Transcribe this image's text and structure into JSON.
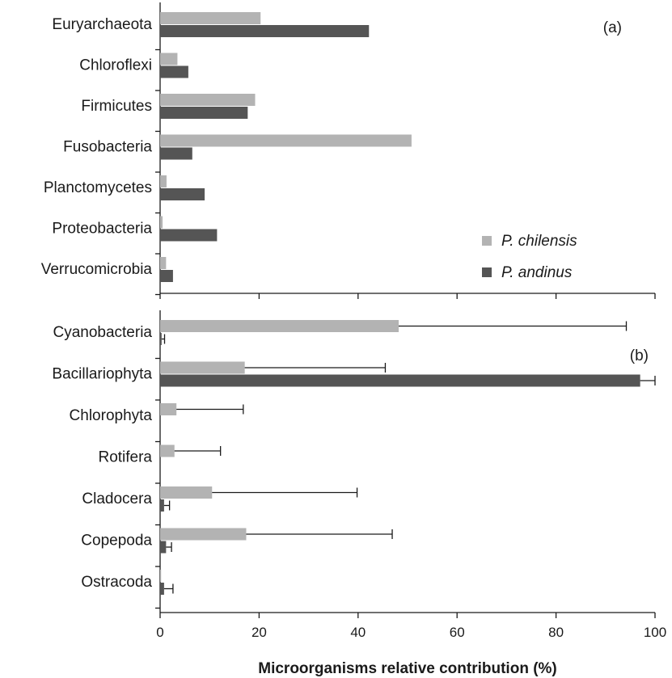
{
  "colors": {
    "chilensis": "#b3b3b3",
    "andinus": "#555555",
    "axis": "#1a1a1a"
  },
  "chart_data": [
    {
      "type": "bar",
      "orientation": "horizontal",
      "panel": "(a)",
      "categories": [
        "Euryarchaeota",
        "Chloroflexi",
        "Firmicutes",
        "Fusobacteria",
        "Planctomycetes",
        "Proteobacteria",
        "Verrucomicrobia"
      ],
      "series": [
        {
          "name": "P. chilensis",
          "values": [
            20.3,
            3.5,
            19.2,
            50.8,
            1.3,
            0.5,
            1.2
          ]
        },
        {
          "name": "P. andinus",
          "values": [
            42.2,
            5.7,
            17.7,
            6.5,
            9.0,
            11.5,
            2.6
          ]
        }
      ],
      "xlim": [
        0,
        100
      ],
      "legend": {
        "position": "bottom-right"
      }
    },
    {
      "type": "bar",
      "orientation": "horizontal",
      "panel": "(b)",
      "categories": [
        "Cyanobacteria",
        "Bacillariophyta",
        "Chlorophyta",
        "Rotifera",
        "Cladocera",
        "Copepoda",
        "Ostracoda"
      ],
      "series": [
        {
          "name": "P. chilensis",
          "values": [
            48.2,
            17.1,
            3.3,
            2.9,
            10.5,
            17.4,
            0.2
          ],
          "error": [
            46.0,
            28.4,
            13.5,
            9.3,
            29.3,
            29.5,
            0
          ]
        },
        {
          "name": "P. andinus",
          "values": [
            0.3,
            97.0,
            0,
            0,
            0.8,
            1.2,
            0.8
          ],
          "error": [
            0.6,
            3.0,
            0,
            0,
            1.1,
            1.1,
            1.8
          ]
        }
      ],
      "xlim": [
        0,
        100
      ],
      "xticks": [
        0,
        20,
        40,
        60,
        80,
        100
      ],
      "xlabel": "Microorganisms relative contribution (%)"
    }
  ]
}
